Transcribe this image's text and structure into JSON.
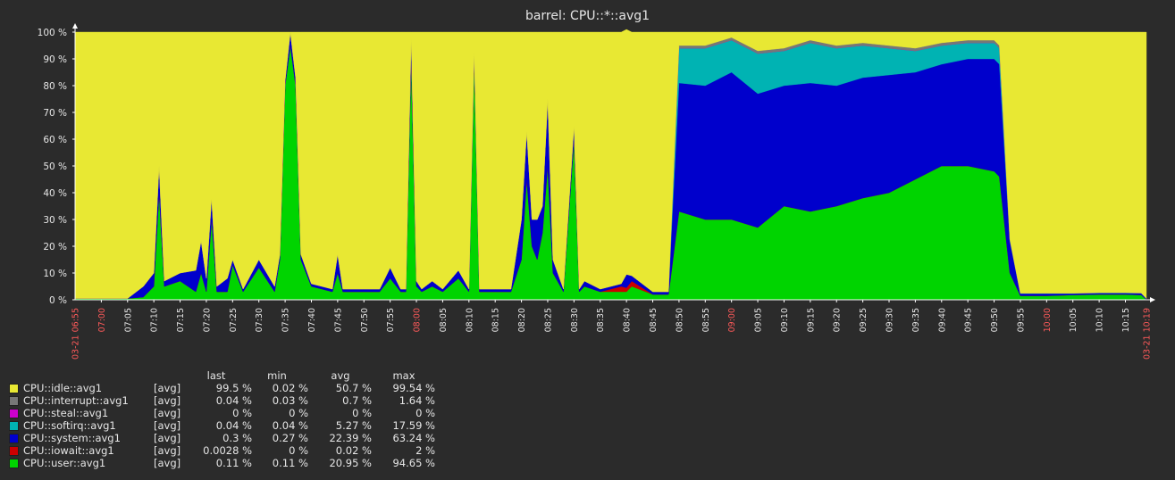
{
  "chart_data": {
    "type": "area",
    "title": "barrel: CPU::*::avg1",
    "stacked": true,
    "x_unit": "minutes",
    "x_start": "03-21 06:55",
    "x_end": "03-21 10:19",
    "xlim": [
      "06:55",
      "10:19"
    ],
    "ylim": [
      0,
      100
    ],
    "y_tick_labels": [
      "0 %",
      "10 %",
      "20 %",
      "30 %",
      "40 %",
      "50 %",
      "60 %",
      "70 %",
      "80 %",
      "90 %",
      "100 %"
    ],
    "x_tick_labels": [
      "07:05",
      "07:10",
      "07:15",
      "07:20",
      "07:25",
      "07:30",
      "07:35",
      "07:40",
      "07:45",
      "07:50",
      "07:55",
      "08:05",
      "08:10",
      "08:15",
      "08:20",
      "08:25",
      "08:30",
      "08:35",
      "08:40",
      "08:45",
      "08:50",
      "08:55",
      "09:05",
      "09:10",
      "09:15",
      "09:20",
      "09:25",
      "09:30",
      "09:35",
      "09:40",
      "09:45",
      "09:50",
      "09:55",
      "10:05",
      "10:10",
      "10:15"
    ],
    "x_hour_labels": [
      "07:00",
      "08:00",
      "09:00",
      "10:00"
    ],
    "x_edge_labels": [
      "03-21 06:55",
      "03-21 10:19"
    ],
    "grid": false,
    "legend_position": "bottom-left",
    "x": [
      "06:55",
      "07:00",
      "07:05",
      "07:08",
      "07:10",
      "07:11",
      "07:12",
      "07:15",
      "07:18",
      "07:19",
      "07:20",
      "07:21",
      "07:22",
      "07:24",
      "07:25",
      "07:27",
      "07:30",
      "07:33",
      "07:34",
      "07:35",
      "07:36",
      "07:37",
      "07:38",
      "07:40",
      "07:44",
      "07:45",
      "07:46",
      "07:50",
      "07:53",
      "07:55",
      "07:57",
      "07:58",
      "07:59",
      "08:00",
      "08:01",
      "08:03",
      "08:05",
      "08:08",
      "08:10",
      "08:11",
      "08:12",
      "08:15",
      "08:18",
      "08:20",
      "08:21",
      "08:22",
      "08:23",
      "08:24",
      "08:25",
      "08:26",
      "08:28",
      "08:30",
      "08:31",
      "08:32",
      "08:35",
      "08:39",
      "08:40",
      "08:41",
      "08:45",
      "08:47",
      "08:48",
      "08:50",
      "08:55",
      "09:00",
      "09:05",
      "09:10",
      "09:15",
      "09:20",
      "09:25",
      "09:30",
      "09:35",
      "09:40",
      "09:45",
      "09:50",
      "09:51",
      "09:53",
      "09:55",
      "10:00",
      "10:05",
      "10:10",
      "10:15",
      "10:18",
      "10:19"
    ],
    "series": [
      {
        "name": "CPU::user::avg1",
        "color": "#00d400",
        "values": [
          0.5,
          0.5,
          0.5,
          1,
          5,
          40,
          5,
          7,
          3,
          10,
          3,
          30,
          3,
          3,
          13,
          3,
          12,
          3,
          15,
          80,
          95,
          80,
          15,
          5,
          3,
          10,
          3,
          3,
          3,
          8,
          3,
          3,
          90,
          5,
          3,
          5,
          3,
          8,
          3,
          90,
          3,
          3,
          3,
          15,
          45,
          20,
          15,
          25,
          50,
          10,
          3,
          60,
          3,
          5,
          3,
          3,
          3,
          5,
          2,
          2,
          2,
          33,
          30,
          30,
          27,
          35,
          33,
          35,
          38,
          40,
          45,
          50,
          50,
          48,
          46,
          10,
          1.5,
          1.5,
          1.8,
          2,
          2,
          1.8,
          0.1
        ]
      },
      {
        "name": "CPU::iowait::avg1",
        "color": "#cc0000",
        "values": [
          0,
          0,
          0,
          0,
          0,
          0,
          0,
          0,
          0,
          0,
          0,
          0,
          0,
          0,
          0,
          0,
          0,
          0,
          0,
          0,
          0,
          0,
          0,
          0,
          0,
          0,
          0,
          0,
          0,
          0,
          0,
          0,
          0,
          0,
          0,
          0,
          0,
          0,
          0,
          0,
          0,
          0,
          0,
          0,
          0,
          0,
          0,
          0,
          0,
          0,
          0,
          0,
          0,
          0,
          0,
          2,
          1.5,
          2,
          0,
          0,
          0,
          0,
          0,
          0,
          0,
          0,
          0,
          0,
          0,
          0,
          0,
          0,
          0,
          0,
          0,
          0,
          0,
          0,
          0,
          0,
          0,
          0,
          0
        ]
      },
      {
        "name": "CPU::system::avg1",
        "color": "#0000cc",
        "values": [
          0,
          0,
          0,
          4,
          5,
          10,
          2,
          3,
          8,
          12,
          5,
          8,
          2,
          5,
          2,
          1,
          3,
          2,
          2,
          2,
          5,
          3,
          2,
          1,
          1,
          7,
          1,
          1,
          1,
          4,
          1,
          1,
          8,
          2,
          1,
          2,
          1,
          3,
          1,
          3,
          1,
          1,
          1,
          15,
          18,
          10,
          15,
          10,
          25,
          5,
          1,
          5,
          1,
          2,
          1,
          1,
          5,
          2,
          1,
          1,
          1,
          48,
          50,
          55,
          50,
          45,
          48,
          45,
          45,
          44,
          40,
          38,
          40,
          42,
          42,
          12,
          0.8,
          0.8,
          0.5,
          0.5,
          0.5,
          0.6,
          0.3
        ]
      },
      {
        "name": "CPU::softirq::avg1",
        "color": "#00b3b3",
        "values": [
          0,
          0,
          0,
          0,
          0,
          0,
          0,
          0,
          0,
          0,
          0,
          0,
          0,
          0,
          0,
          0,
          0,
          0,
          0,
          0,
          0,
          0,
          0,
          0,
          0,
          0,
          0,
          0,
          0,
          0,
          0,
          0,
          0,
          0,
          0,
          0,
          0,
          0,
          0,
          0,
          0,
          0,
          0,
          0,
          0,
          0,
          0,
          0,
          0,
          0,
          0,
          0,
          0,
          0,
          0,
          0,
          0,
          0,
          0,
          0,
          0,
          13,
          14,
          12,
          15,
          13,
          15,
          14,
          12,
          10,
          8,
          7,
          6,
          6,
          6,
          0.5,
          0.1,
          0.1,
          0.1,
          0.1,
          0.1,
          0.1,
          0.04
        ]
      },
      {
        "name": "CPU::steal::avg1",
        "color": "#cc00cc",
        "values": [
          0,
          0,
          0,
          0,
          0,
          0,
          0,
          0,
          0,
          0,
          0,
          0,
          0,
          0,
          0,
          0,
          0,
          0,
          0,
          0,
          0,
          0,
          0,
          0,
          0,
          0,
          0,
          0,
          0,
          0,
          0,
          0,
          0,
          0,
          0,
          0,
          0,
          0,
          0,
          0,
          0,
          0,
          0,
          0,
          0,
          0,
          0,
          0,
          0,
          0,
          0,
          0,
          0,
          0,
          0,
          0,
          0,
          0,
          0,
          0,
          0,
          0,
          0,
          0,
          0,
          0,
          0,
          0,
          0,
          0,
          0,
          0,
          0,
          0,
          0,
          0,
          0,
          0,
          0,
          0,
          0,
          0,
          0
        ]
      },
      {
        "name": "CPU::interrupt::avg1",
        "color": "#777777",
        "values": [
          0,
          0,
          0,
          0,
          0,
          0,
          0,
          0,
          0,
          0,
          0,
          0,
          0,
          0,
          0,
          0,
          0,
          0,
          0,
          0,
          0,
          0,
          0,
          0,
          0,
          0,
          0,
          0,
          0,
          0,
          0,
          0,
          0,
          0,
          0,
          0,
          0,
          0,
          0,
          0,
          0,
          0,
          0,
          0,
          0,
          0,
          0,
          0,
          0,
          0,
          0,
          0,
          0,
          0,
          0,
          0,
          0,
          0,
          0,
          0,
          0,
          1,
          1,
          1,
          1,
          1,
          1,
          1,
          1,
          1,
          1,
          1,
          1,
          1,
          1,
          0.1,
          0.04,
          0.04,
          0.04,
          0.04,
          0.04,
          0.04,
          0.04
        ]
      },
      {
        "name": "CPU::idle::avg1",
        "color": "#e8e833",
        "values": [
          99.5,
          99.5,
          99.5,
          95,
          90,
          50,
          93,
          90,
          89,
          78,
          92,
          62,
          95,
          92,
          85,
          96,
          85,
          95,
          83,
          18,
          0,
          17,
          83,
          94,
          96,
          83,
          96,
          96,
          96,
          88,
          96,
          96,
          2,
          93,
          96,
          93,
          96,
          89,
          96,
          7,
          96,
          96,
          96,
          70,
          37,
          70,
          70,
          65,
          25,
          85,
          96,
          35,
          96,
          93,
          96,
          94,
          91.5,
          91,
          97,
          97,
          97,
          5,
          5,
          2,
          7,
          6,
          3,
          5,
          4,
          5,
          6,
          4,
          3,
          3,
          5,
          77.4,
          97.56,
          97.56,
          97.56,
          97.36,
          97.36,
          97.46,
          99.5
        ]
      }
    ]
  },
  "legend": {
    "headers": {
      "last": "last",
      "min": "min",
      "avg": "avg",
      "max": "max"
    },
    "rows": [
      {
        "name": "CPU::idle::avg1",
        "color": "#e8e833",
        "agg": "[avg]",
        "last": "99.5 %",
        "min": "0.02 %",
        "avg": "50.7 %",
        "max": "99.54 %"
      },
      {
        "name": "CPU::interrupt::avg1",
        "color": "#777777",
        "agg": "[avg]",
        "last": "0.04 %",
        "min": "0.03 %",
        "avg": "0.7 %",
        "max": "1.64 %"
      },
      {
        "name": "CPU::steal::avg1",
        "color": "#cc00cc",
        "agg": "[avg]",
        "last": "0 %",
        "min": "0 %",
        "avg": "0 %",
        "max": "0 %"
      },
      {
        "name": "CPU::softirq::avg1",
        "color": "#00b3b3",
        "agg": "[avg]",
        "last": "0.04 %",
        "min": "0.04 %",
        "avg": "5.27 %",
        "max": "17.59 %"
      },
      {
        "name": "CPU::system::avg1",
        "color": "#0000cc",
        "agg": "[avg]",
        "last": "0.3 %",
        "min": "0.27 %",
        "avg": "22.39 %",
        "max": "63.24 %"
      },
      {
        "name": "CPU::iowait::avg1",
        "color": "#cc0000",
        "agg": "[avg]",
        "last": "0.0028 %",
        "min": "0 %",
        "avg": "0.02 %",
        "max": "2 %"
      },
      {
        "name": "CPU::user::avg1",
        "color": "#00d400",
        "agg": "[avg]",
        "last": "0.11 %",
        "min": "0.11 %",
        "avg": "20.95 %",
        "max": "94.65 %"
      }
    ]
  }
}
